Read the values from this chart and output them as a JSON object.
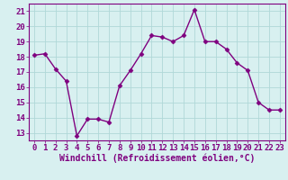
{
  "x": [
    0,
    1,
    2,
    3,
    4,
    5,
    6,
    7,
    8,
    9,
    10,
    11,
    12,
    13,
    14,
    15,
    16,
    17,
    18,
    19,
    20,
    21,
    22,
    23
  ],
  "y": [
    18.1,
    18.2,
    17.2,
    16.4,
    12.8,
    13.9,
    13.9,
    13.7,
    16.1,
    17.1,
    18.2,
    19.4,
    19.3,
    19.0,
    19.4,
    21.1,
    19.0,
    19.0,
    18.5,
    17.6,
    17.1,
    15.0,
    14.5,
    14.5
  ],
  "line_color": "#7f007f",
  "marker": "D",
  "marker_size": 2.5,
  "bg_color": "#d8f0f0",
  "grid_color": "#b0d8d8",
  "xlabel": "Windchill (Refroidissement éolien,°C)",
  "xlabel_fontsize": 7,
  "tick_fontsize": 6.5,
  "ylim": [
    12.5,
    21.5
  ],
  "yticks": [
    13,
    14,
    15,
    16,
    17,
    18,
    19,
    20,
    21
  ],
  "xlim": [
    -0.5,
    23.5
  ],
  "xticks": [
    0,
    1,
    2,
    3,
    4,
    5,
    6,
    7,
    8,
    9,
    10,
    11,
    12,
    13,
    14,
    15,
    16,
    17,
    18,
    19,
    20,
    21,
    22,
    23
  ],
  "spine_color": "#7f007f",
  "line_width": 1.0
}
